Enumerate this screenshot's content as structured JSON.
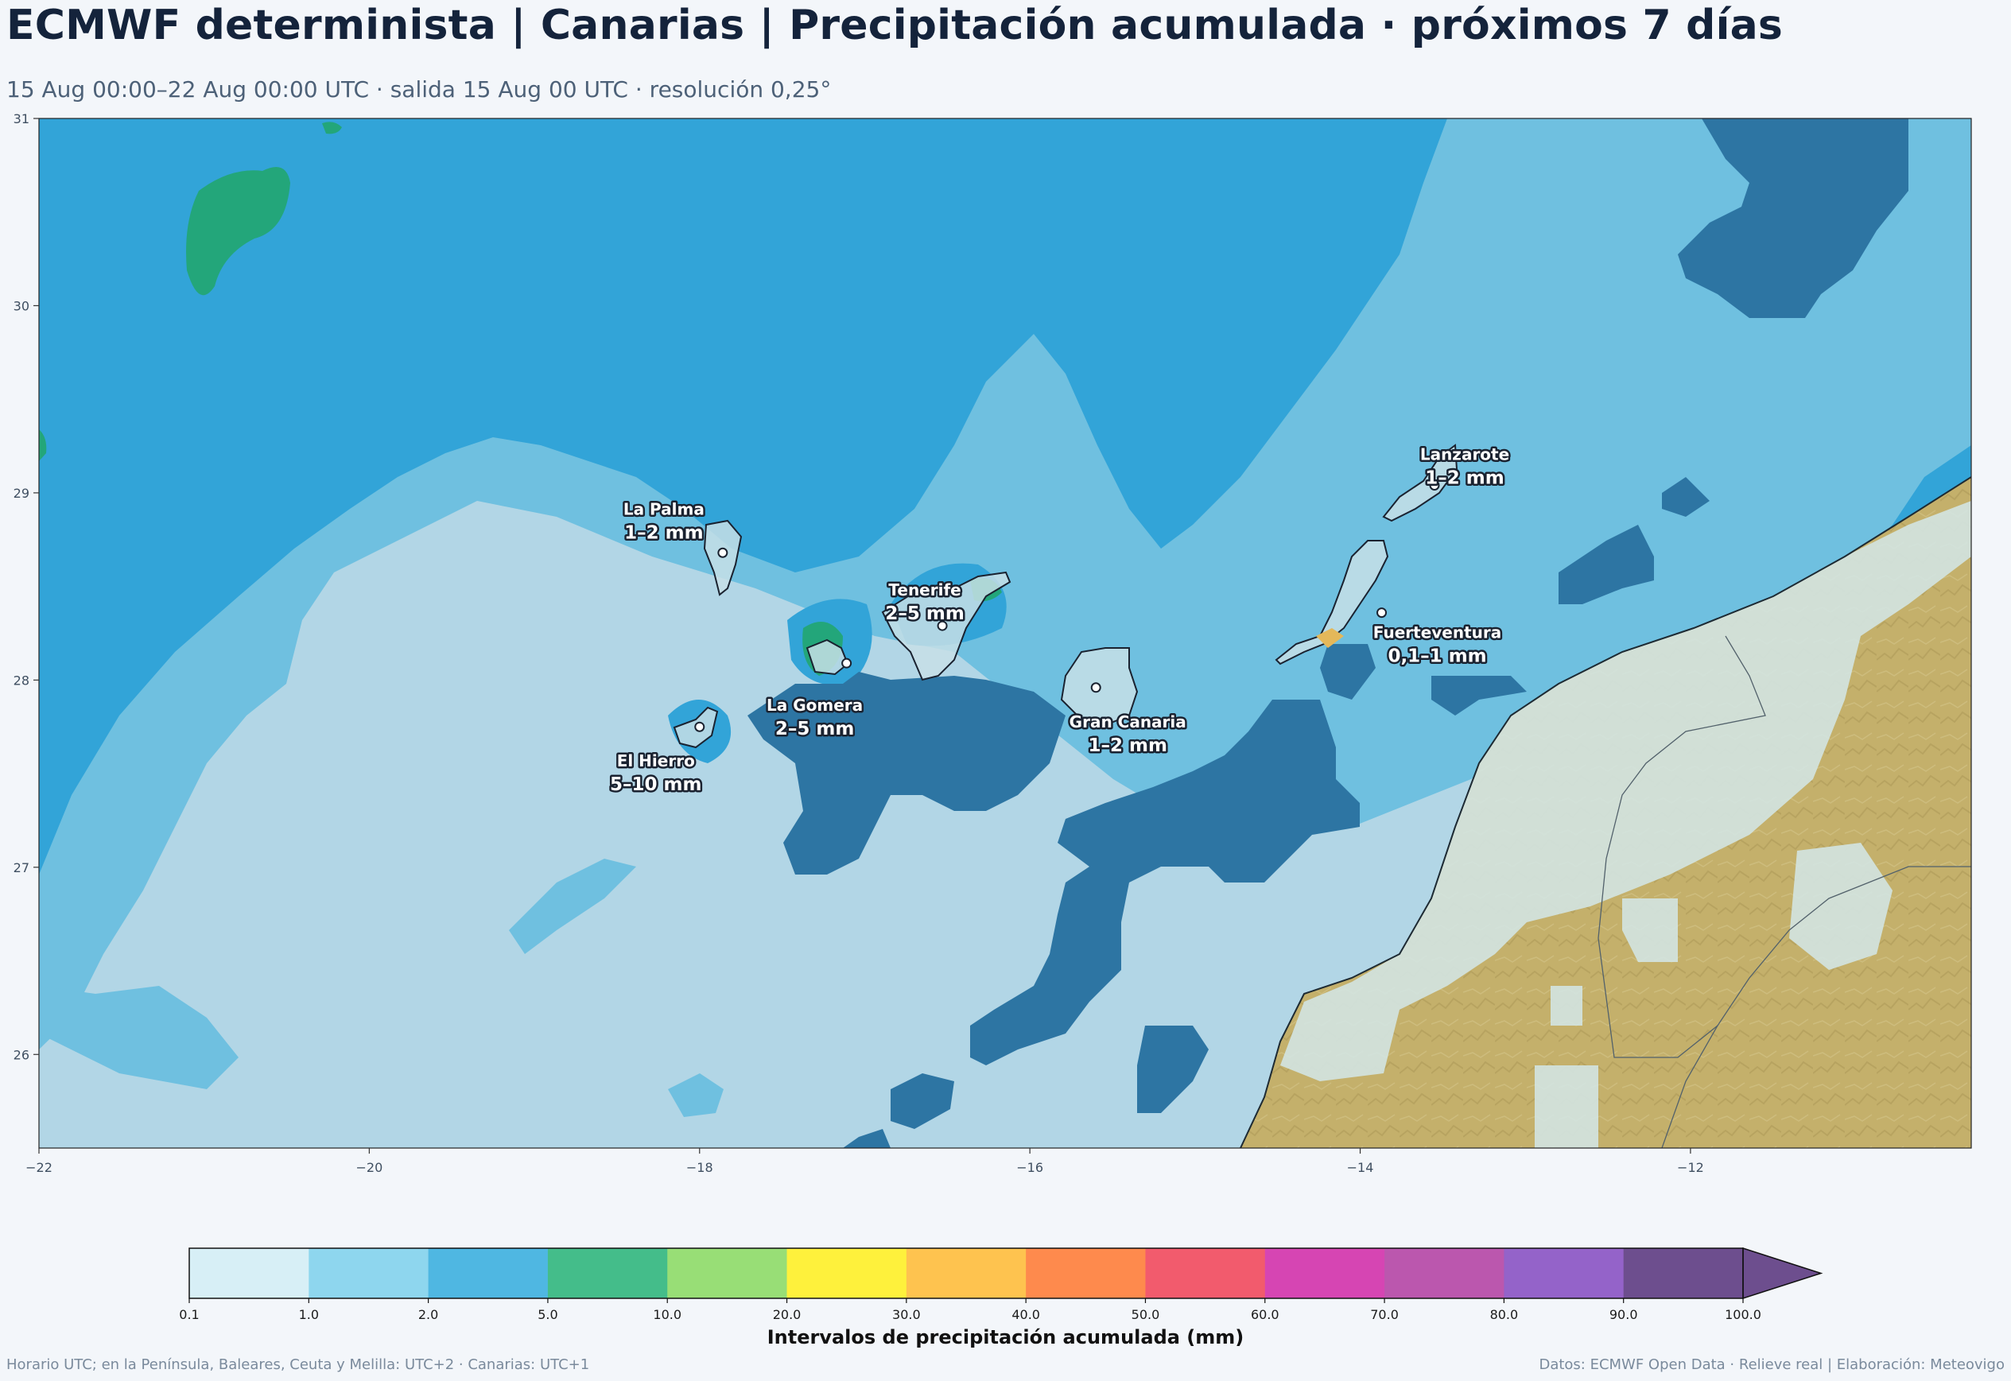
{
  "header": {
    "title": "ECMWF determinista | Canarias | Precipitación acumulada · próximos 7 días",
    "subtitle": "15 Aug 00:00–22 Aug 00:00 UTC · salida 15 Aug 00 UTC · resolución 0,25°"
  },
  "map": {
    "lon_range": [
      -22,
      -10.3
    ],
    "lat_range": [
      25.5,
      31
    ],
    "x_ticks": [
      "−22",
      "−20",
      "−18",
      "−16",
      "−14",
      "−12"
    ],
    "y_ticks": [
      "31",
      "30",
      "29",
      "28",
      "27",
      "26"
    ],
    "x_tick_values": [
      -22,
      -20,
      -18,
      -16,
      -14,
      -12
    ],
    "y_tick_values": [
      31,
      30,
      29,
      28,
      27,
      26
    ],
    "islands": [
      {
        "name": "La Palma",
        "value": "1–2 mm",
        "lon": -17.86,
        "lat": 28.68
      },
      {
        "name": "Tenerife",
        "value": "2–5 mm",
        "lon": -16.53,
        "lat": 28.29
      },
      {
        "name": "La Gomera",
        "value": "2–5 mm",
        "lon": -17.11,
        "lat": 28.09
      },
      {
        "name": "El Hierro",
        "value": "5–10 mm",
        "lon": -18.0,
        "lat": 27.75
      },
      {
        "name": "Gran Canaria",
        "value": "1–2 mm",
        "lon": -15.6,
        "lat": 27.96
      },
      {
        "name": "Fuerteventura",
        "value": "0,1–1 mm",
        "lon": -13.87,
        "lat": 28.36
      },
      {
        "name": "Lanzarote",
        "value": "1–2 mm",
        "lon": -13.55,
        "lat": 29.04
      }
    ],
    "colors": {
      "ocean_base": "#b2d6e6",
      "band_light": "#6fc0e0",
      "band_mid": "#32a4d8",
      "band_dark": "#2d75a3",
      "band_green": "#23a67a",
      "land": "#c4b06b",
      "land_pale": "#d3e4e2"
    }
  },
  "colorbar": {
    "title": "Intervalos de precipitación acumulada (mm)",
    "ticks": [
      "0.1",
      "1.0",
      "2.0",
      "5.0",
      "10.0",
      "20.0",
      "30.0",
      "40.0",
      "50.0",
      "60.0",
      "70.0",
      "80.0",
      "90.0",
      "100.0"
    ],
    "colors": [
      "#d7eff6",
      "#8ed6ee",
      "#4fb7e2",
      "#44bd8a",
      "#98de76",
      "#fef13c",
      "#fec34f",
      "#fe8a4d",
      "#f25b6d",
      "#d645b3",
      "#bb57ae",
      "#9463c9",
      "#6d4e8e"
    ],
    "extend_color": "#6d4e8e"
  },
  "footer": {
    "left": "Horario UTC; en la Península, Baleares, Ceuta y Melilla: UTC+2 · Canarias: UTC+1",
    "right": "Datos: ECMWF Open Data · Relieve real | Elaboración: Meteovigo"
  }
}
